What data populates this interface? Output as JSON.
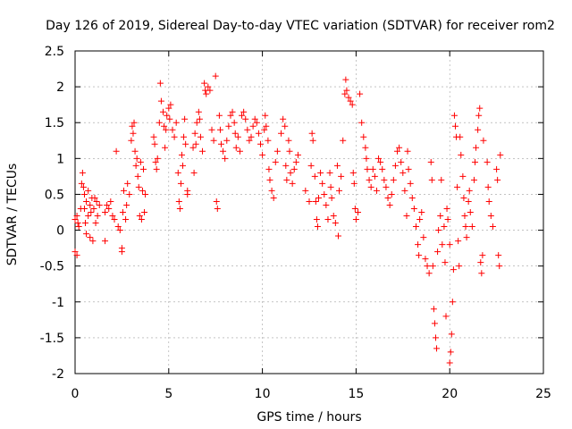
{
  "chart_data": {
    "type": "scatter",
    "title": "Day 126 of 2019, Sidereal Day-to-day VTEC variation (SDTVAR) for receiver rom2",
    "xlabel": "GPS time / hours",
    "ylabel": "SDTVAR / TECUs",
    "xlim": [
      0,
      25
    ],
    "ylim": [
      -2,
      2.5
    ],
    "xticks": [
      0,
      5,
      10,
      15,
      20,
      25
    ],
    "yticks": [
      -2,
      -1.5,
      -1,
      -0.5,
      0,
      0.5,
      1,
      1.5,
      2,
      2.5
    ],
    "xtick_labels": [
      "0",
      "5",
      "10",
      "15",
      "20",
      "25"
    ],
    "ytick_labels": [
      "-2",
      "-1.5",
      "-1",
      "-0.5",
      "0",
      "0.5",
      "1",
      "1.5",
      "2",
      "2.5"
    ],
    "grid": true,
    "marker": "+",
    "color": "#ff0000",
    "series": [
      {
        "name": "rom2",
        "points": [
          [
            0.0,
            0.15
          ],
          [
            0.0,
            -0.3
          ],
          [
            0.1,
            0.2
          ],
          [
            0.1,
            -0.35
          ],
          [
            0.15,
            0.1
          ],
          [
            0.2,
            0.05
          ],
          [
            0.3,
            0.3
          ],
          [
            0.35,
            0.65
          ],
          [
            0.4,
            0.8
          ],
          [
            0.45,
            0.6
          ],
          [
            0.5,
            0.5
          ],
          [
            0.5,
            0.3
          ],
          [
            0.55,
            0.1
          ],
          [
            0.6,
            0.4
          ],
          [
            0.6,
            -0.05
          ],
          [
            0.7,
            0.2
          ],
          [
            0.7,
            0.55
          ],
          [
            0.8,
            -0.1
          ],
          [
            0.8,
            0.35
          ],
          [
            0.85,
            0.25
          ],
          [
            0.9,
            0.45
          ],
          [
            0.95,
            -0.15
          ],
          [
            1.0,
            0.3
          ],
          [
            1.05,
            0.45
          ],
          [
            1.1,
            0.1
          ],
          [
            1.15,
            0.4
          ],
          [
            1.2,
            0.2
          ],
          [
            1.3,
            0.35
          ],
          [
            1.6,
            0.25
          ],
          [
            1.6,
            -0.15
          ],
          [
            1.7,
            0.35
          ],
          [
            1.8,
            0.3
          ],
          [
            1.9,
            0.4
          ],
          [
            2.0,
            0.2
          ],
          [
            2.1,
            0.15
          ],
          [
            2.2,
            1.1
          ],
          [
            2.3,
            0.05
          ],
          [
            2.4,
            0.0
          ],
          [
            2.5,
            -0.25
          ],
          [
            2.5,
            -0.3
          ],
          [
            2.55,
            0.25
          ],
          [
            2.6,
            0.55
          ],
          [
            2.7,
            0.15
          ],
          [
            2.75,
            0.35
          ],
          [
            2.8,
            0.65
          ],
          [
            2.9,
            0.5
          ],
          [
            3.0,
            1.25
          ],
          [
            3.05,
            1.45
          ],
          [
            3.1,
            1.35
          ],
          [
            3.15,
            1.5
          ],
          [
            3.2,
            1.1
          ],
          [
            3.25,
            0.9
          ],
          [
            3.3,
            1.0
          ],
          [
            3.35,
            0.75
          ],
          [
            3.4,
            0.6
          ],
          [
            3.45,
            0.2
          ],
          [
            3.5,
            0.95
          ],
          [
            3.55,
            0.15
          ],
          [
            3.6,
            0.55
          ],
          [
            3.65,
            0.85
          ],
          [
            3.7,
            0.25
          ],
          [
            3.75,
            0.5
          ],
          [
            4.2,
            1.3
          ],
          [
            4.25,
            1.2
          ],
          [
            4.3,
            0.95
          ],
          [
            4.35,
            0.85
          ],
          [
            4.4,
            1.0
          ],
          [
            4.5,
            1.5
          ],
          [
            4.55,
            2.05
          ],
          [
            4.6,
            1.8
          ],
          [
            4.7,
            1.65
          ],
          [
            4.75,
            1.45
          ],
          [
            4.8,
            1.15
          ],
          [
            4.85,
            1.4
          ],
          [
            4.9,
            1.6
          ],
          [
            5.0,
            1.7
          ],
          [
            5.05,
            1.55
          ],
          [
            5.1,
            1.75
          ],
          [
            5.2,
            1.4
          ],
          [
            5.3,
            1.3
          ],
          [
            5.4,
            1.5
          ],
          [
            5.5,
            0.8
          ],
          [
            5.55,
            0.4
          ],
          [
            5.6,
            0.3
          ],
          [
            5.65,
            0.65
          ],
          [
            5.7,
            1.05
          ],
          [
            5.75,
            0.9
          ],
          [
            5.8,
            1.3
          ],
          [
            5.85,
            1.55
          ],
          [
            5.9,
            1.2
          ],
          [
            6.0,
            0.55
          ],
          [
            6.0,
            0.5
          ],
          [
            6.3,
            1.15
          ],
          [
            6.35,
            0.8
          ],
          [
            6.4,
            1.35
          ],
          [
            6.45,
            1.2
          ],
          [
            6.5,
            1.5
          ],
          [
            6.6,
            1.65
          ],
          [
            6.65,
            1.55
          ],
          [
            6.7,
            1.3
          ],
          [
            6.8,
            1.1
          ],
          [
            6.9,
            2.05
          ],
          [
            6.95,
            1.95
          ],
          [
            7.0,
            1.9
          ],
          [
            7.1,
            2.0
          ],
          [
            7.2,
            1.95
          ],
          [
            7.3,
            1.4
          ],
          [
            7.4,
            1.25
          ],
          [
            7.5,
            2.15
          ],
          [
            7.55,
            0.4
          ],
          [
            7.6,
            0.3
          ],
          [
            7.7,
            1.6
          ],
          [
            7.75,
            1.4
          ],
          [
            7.8,
            1.2
          ],
          [
            7.9,
            1.1
          ],
          [
            8.0,
            1.0
          ],
          [
            8.1,
            1.25
          ],
          [
            8.2,
            1.45
          ],
          [
            8.3,
            1.6
          ],
          [
            8.4,
            1.65
          ],
          [
            8.5,
            1.5
          ],
          [
            8.55,
            1.35
          ],
          [
            8.6,
            1.15
          ],
          [
            8.7,
            1.3
          ],
          [
            8.8,
            1.1
          ],
          [
            8.9,
            1.6
          ],
          [
            9.0,
            1.65
          ],
          [
            9.1,
            1.55
          ],
          [
            9.2,
            1.4
          ],
          [
            9.3,
            1.25
          ],
          [
            9.4,
            1.3
          ],
          [
            9.5,
            1.45
          ],
          [
            9.6,
            1.55
          ],
          [
            9.7,
            1.5
          ],
          [
            9.8,
            1.35
          ],
          [
            9.9,
            1.2
          ],
          [
            10.0,
            1.05
          ],
          [
            10.1,
            1.4
          ],
          [
            10.15,
            1.6
          ],
          [
            10.2,
            1.45
          ],
          [
            10.3,
            1.25
          ],
          [
            10.35,
            0.85
          ],
          [
            10.4,
            0.7
          ],
          [
            10.5,
            0.55
          ],
          [
            10.6,
            0.45
          ],
          [
            10.7,
            0.95
          ],
          [
            10.8,
            1.1
          ],
          [
            11.0,
            1.35
          ],
          [
            11.1,
            1.55
          ],
          [
            11.2,
            1.45
          ],
          [
            11.25,
            0.9
          ],
          [
            11.3,
            0.7
          ],
          [
            11.4,
            1.25
          ],
          [
            11.45,
            1.1
          ],
          [
            11.5,
            0.8
          ],
          [
            11.6,
            0.65
          ],
          [
            11.7,
            0.85
          ],
          [
            11.8,
            0.95
          ],
          [
            11.9,
            1.05
          ],
          [
            12.3,
            0.55
          ],
          [
            12.5,
            0.4
          ],
          [
            12.6,
            0.9
          ],
          [
            12.65,
            1.35
          ],
          [
            12.7,
            1.25
          ],
          [
            12.8,
            0.75
          ],
          [
            12.85,
            0.4
          ],
          [
            12.9,
            0.15
          ],
          [
            12.95,
            0.05
          ],
          [
            13.0,
            0.45
          ],
          [
            13.1,
            0.8
          ],
          [
            13.2,
            0.65
          ],
          [
            13.3,
            0.5
          ],
          [
            13.4,
            0.35
          ],
          [
            13.5,
            0.15
          ],
          [
            13.6,
            0.8
          ],
          [
            13.65,
            0.6
          ],
          [
            13.7,
            0.45
          ],
          [
            13.8,
            0.2
          ],
          [
            13.9,
            0.1
          ],
          [
            14.0,
            0.9
          ],
          [
            14.05,
            -0.08
          ],
          [
            14.1,
            0.55
          ],
          [
            14.2,
            0.75
          ],
          [
            14.3,
            1.25
          ],
          [
            14.4,
            1.9
          ],
          [
            14.45,
            2.1
          ],
          [
            14.5,
            1.95
          ],
          [
            14.6,
            1.85
          ],
          [
            14.7,
            1.8
          ],
          [
            14.8,
            1.75
          ],
          [
            14.85,
            0.8
          ],
          [
            14.9,
            0.65
          ],
          [
            14.95,
            0.3
          ],
          [
            15.0,
            0.15
          ],
          [
            15.1,
            0.25
          ],
          [
            15.2,
            1.9
          ],
          [
            15.3,
            1.5
          ],
          [
            15.4,
            1.3
          ],
          [
            15.5,
            1.15
          ],
          [
            15.55,
            1.0
          ],
          [
            15.6,
            0.85
          ],
          [
            15.7,
            0.7
          ],
          [
            15.8,
            0.6
          ],
          [
            15.9,
            0.85
          ],
          [
            16.0,
            0.75
          ],
          [
            16.1,
            0.55
          ],
          [
            16.2,
            1.0
          ],
          [
            16.3,
            0.95
          ],
          [
            16.4,
            0.85
          ],
          [
            16.5,
            0.7
          ],
          [
            16.6,
            0.6
          ],
          [
            16.7,
            0.45
          ],
          [
            16.8,
            0.35
          ],
          [
            16.9,
            0.5
          ],
          [
            17.0,
            0.7
          ],
          [
            17.1,
            0.9
          ],
          [
            17.2,
            1.1
          ],
          [
            17.3,
            1.15
          ],
          [
            17.4,
            0.95
          ],
          [
            17.5,
            0.8
          ],
          [
            17.6,
            0.55
          ],
          [
            17.7,
            0.2
          ],
          [
            17.75,
            1.1
          ],
          [
            17.8,
            0.85
          ],
          [
            17.9,
            0.65
          ],
          [
            18.0,
            0.45
          ],
          [
            18.1,
            0.3
          ],
          [
            18.2,
            0.05
          ],
          [
            18.3,
            -0.2
          ],
          [
            18.35,
            -0.35
          ],
          [
            18.4,
            0.15
          ],
          [
            18.5,
            0.25
          ],
          [
            18.6,
            -0.1
          ],
          [
            18.7,
            -0.4
          ],
          [
            18.8,
            -0.5
          ],
          [
            18.9,
            -0.6
          ],
          [
            19.0,
            0.95
          ],
          [
            19.05,
            0.7
          ],
          [
            19.1,
            -0.5
          ],
          [
            19.15,
            -1.1
          ],
          [
            19.2,
            -1.3
          ],
          [
            19.25,
            -1.5
          ],
          [
            19.3,
            -1.65
          ],
          [
            19.35,
            -0.3
          ],
          [
            19.4,
            0.0
          ],
          [
            19.5,
            0.2
          ],
          [
            19.55,
            0.7
          ],
          [
            19.6,
            -0.2
          ],
          [
            19.7,
            0.05
          ],
          [
            19.75,
            -0.45
          ],
          [
            19.8,
            -1.2
          ],
          [
            19.85,
            0.3
          ],
          [
            19.9,
            0.15
          ],
          [
            20.0,
            -0.2
          ],
          [
            20.0,
            -1.85
          ],
          [
            20.05,
            -1.7
          ],
          [
            20.1,
            -1.45
          ],
          [
            20.15,
            -1.0
          ],
          [
            20.2,
            -0.55
          ],
          [
            20.25,
            1.6
          ],
          [
            20.3,
            1.45
          ],
          [
            20.35,
            1.3
          ],
          [
            20.4,
            0.6
          ],
          [
            20.45,
            -0.15
          ],
          [
            20.5,
            -0.5
          ],
          [
            20.55,
            1.3
          ],
          [
            20.6,
            1.05
          ],
          [
            20.7,
            0.75
          ],
          [
            20.75,
            0.45
          ],
          [
            20.8,
            0.2
          ],
          [
            20.85,
            0.05
          ],
          [
            20.9,
            -0.1
          ],
          [
            21.0,
            0.4
          ],
          [
            21.05,
            0.55
          ],
          [
            21.1,
            0.25
          ],
          [
            21.2,
            0.05
          ],
          [
            21.3,
            0.7
          ],
          [
            21.35,
            0.95
          ],
          [
            21.4,
            1.15
          ],
          [
            21.5,
            1.4
          ],
          [
            21.55,
            1.6
          ],
          [
            21.6,
            1.7
          ],
          [
            21.65,
            -0.45
          ],
          [
            21.7,
            -0.6
          ],
          [
            21.75,
            -0.35
          ],
          [
            21.8,
            1.25
          ],
          [
            22.0,
            0.95
          ],
          [
            22.05,
            0.6
          ],
          [
            22.1,
            0.4
          ],
          [
            22.2,
            0.2
          ],
          [
            22.3,
            0.05
          ],
          [
            22.5,
            0.85
          ],
          [
            22.55,
            0.7
          ],
          [
            22.6,
            -0.35
          ],
          [
            22.65,
            -0.5
          ],
          [
            22.7,
            1.05
          ]
        ]
      }
    ]
  }
}
